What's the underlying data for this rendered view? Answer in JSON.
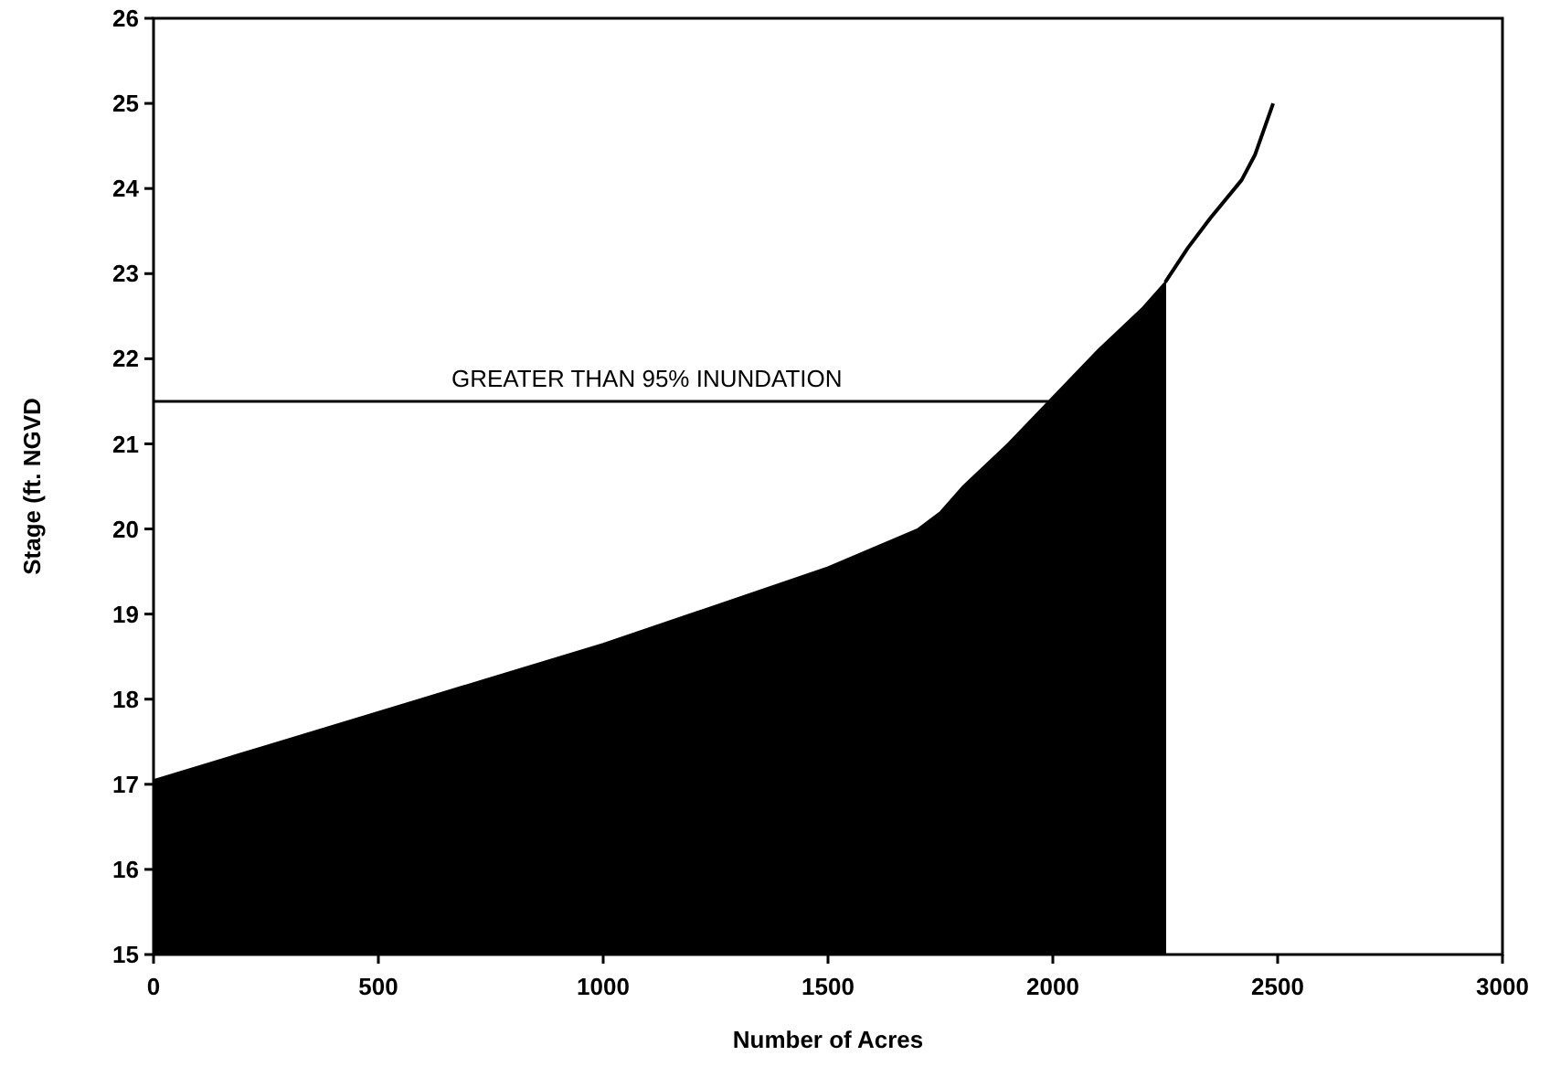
{
  "chart_data": {
    "type": "area",
    "xlabel": "Number of Acres",
    "ylabel": "Stage (ft. NGVD",
    "xlim": [
      0,
      3000
    ],
    "xticks": [
      0,
      500,
      1000,
      1500,
      2000,
      2500,
      3000
    ],
    "ylim": [
      15,
      26
    ],
    "yticks": [
      15,
      16,
      17,
      18,
      19,
      20,
      21,
      22,
      23,
      24,
      25,
      26
    ],
    "grid": false,
    "series": [
      {
        "color": "#000000",
        "x": [
          0,
          250,
          500,
          750,
          1000,
          1250,
          1500,
          1700,
          1750,
          1800,
          1900,
          2000,
          2100,
          2200,
          2250
        ],
        "values": [
          17.05,
          17.45,
          17.85,
          18.25,
          18.65,
          19.1,
          19.55,
          20.0,
          20.2,
          20.5,
          21.0,
          21.55,
          22.1,
          22.6,
          22.9
        ]
      },
      {
        "type": "line",
        "color": "#000000",
        "x": [
          2250,
          2300,
          2350,
          2420,
          2450,
          2490
        ],
        "values": [
          22.9,
          23.3,
          23.65,
          24.1,
          24.4,
          25.0
        ]
      }
    ],
    "ref_lines": [
      {
        "axis": "y",
        "value": 21.5,
        "label": "GREATER THAN 95% INUNDATION",
        "color": "#000000"
      }
    ]
  }
}
